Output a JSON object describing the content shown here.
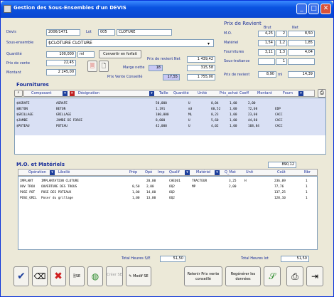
{
  "window": {
    "title": "Gestion des Sous-Ensembles d'un DEVIS"
  },
  "head": {
    "devis_label": "Devis",
    "devis_value": "2006/1471",
    "lot_label": "Lot",
    "lot_code": "005",
    "lot_name": "CLOTURE",
    "sous_ensemble_label": "Sous-ensemble",
    "sous_ensemble_value": "$CLOTURE    CLOTURE",
    "quantite_label": "Quantité",
    "quantite_value": "100,000",
    "unit_value": "ml",
    "prix_vente_label": "Prix de vente",
    "prix_vente_value": "22,45",
    "montant_label": "Montant",
    "montant_value": "2 245,00",
    "convert_button": "Convertir en forfait",
    "prix_revient_net_label": "Prix de revient Net",
    "prix_revient_net_value": "1 439,42",
    "marge_nette_label": "Marge nette",
    "marge_nette_pct": "18",
    "marge_nette_value": "315,58",
    "prix_vente_conseille_label": "Prix Vente Conseillé",
    "prix_vente_conseille_pct": "17,55",
    "prix_vente_conseille_value": "1 755,00"
  },
  "prix_revient": {
    "title": "Prix de Revient",
    "col_brut": "Brut",
    "col_net": "Net",
    "rows": [
      {
        "label": "M.O.",
        "brut": "4,25",
        "coef": "2",
        "net": "8,50"
      },
      {
        "label": "Matériel",
        "brut": "1,54",
        "coef": "1,2",
        "net": "1,85"
      },
      {
        "label": "Fournitures",
        "brut": "3,11",
        "coef": "1,3",
        "net": "4,04"
      },
      {
        "label": "Sous-traitance",
        "brut": "",
        "coef": "1",
        "net": ""
      }
    ],
    "total_label": "Prix de revient",
    "total_brut": "8,90",
    "total_unit": "ml",
    "total_net": "14,39"
  },
  "fournitures": {
    "title": "Fournitures",
    "headers": [
      "Composant",
      "Désignation",
      "Taille",
      "Quantité",
      "Unité",
      "Prix_achat",
      "Coeff",
      "Montant",
      "Fourn"
    ],
    "rows": [
      {
        "code": "$AGRAFE",
        "designation": "AGRAFE",
        "quantite": "50,000",
        "unite": "U",
        "prix": "0,04",
        "coef": "1,00",
        "montant": "2,00",
        "fourn": ""
      },
      {
        "code": "$BETON",
        "designation": "BETON",
        "quantite": "1,191",
        "unite": "m3",
        "prix": "60,52",
        "coef": "1,00",
        "montant": "72,08",
        "fourn": "EDP"
      },
      {
        "code": "$GRILLAGE",
        "designation": "GRILLAGE",
        "quantite": "100,000",
        "unite": "ML",
        "prix": "0,23",
        "coef": "1,00",
        "montant": "23,00",
        "fourn": "CACC"
      },
      {
        "code": "$JAMBE",
        "designation": "JAMBE DE FORCE",
        "quantite": "8,000",
        "unite": "U",
        "prix": "5,60",
        "coef": "1,00",
        "montant": "44,80",
        "fourn": "CACC"
      },
      {
        "code": "$POTEAU",
        "designation": "POTEAU",
        "quantite": "42,000",
        "unite": "U",
        "prix": "4,02",
        "coef": "1,00",
        "montant": "168,84",
        "fourn": "CACC"
      }
    ]
  },
  "mo": {
    "title": "M.O. et Matériels",
    "total_value": "890,12",
    "headers": [
      "Opération",
      "Libellé",
      "Prép",
      "Opé",
      "Imp",
      "Qualif",
      "Matériel",
      "Q_Mat",
      "Unit",
      "Coût",
      "Nbr"
    ],
    "rows": [
      {
        "op": "IMPLANT",
        "libelle": "IMPLANTATION CLOTURE",
        "prep": "",
        "ope": "20,00",
        "imp": "",
        "qualif": "CHEQU1",
        "materiel": "TRACTEUR",
        "qmat": "3,25",
        "unit": "H",
        "cout": "236,09",
        "nbr": "1"
      },
      {
        "op": "OUV TROU",
        "libelle": "OUVERTURE DES TROUS",
        "prep": "0,50",
        "ope": "2,00",
        "imp": "",
        "qualif": "OQ2",
        "materiel": "MP",
        "qmat": "2,00",
        "unit": "",
        "cout": "77,76",
        "nbr": "1"
      },
      {
        "op": "POSE POT",
        "libelle": "POSE DES POTEAUX",
        "prep": "1,00",
        "ope": "14,00",
        "imp": "",
        "qualif": "OQ2",
        "materiel": "",
        "qmat": "",
        "unit": "",
        "cout": "137,25",
        "nbr": "1"
      },
      {
        "op": "POSE_GRIL",
        "libelle": "Poser du grillage",
        "prep": "1,00",
        "ope": "13,00",
        "imp": "",
        "qualif": "OQ2",
        "materiel": "",
        "qmat": "",
        "unit": "",
        "cout": "128,10",
        "nbr": "1"
      }
    ]
  },
  "totals": {
    "heures_se_label": "Total Heures S/E",
    "heures_se_value": "51,50",
    "heures_lot_label": "Total Heures lot",
    "heures_lot_value": "51,50"
  },
  "toolbar": {
    "se_label": "SE",
    "creer_se_label": "Créer SE",
    "modif_se_label": "Modif SE",
    "retenir_label": "Retenir Prix vente conseillé",
    "regenerer_label": "Regénérer les données"
  }
}
